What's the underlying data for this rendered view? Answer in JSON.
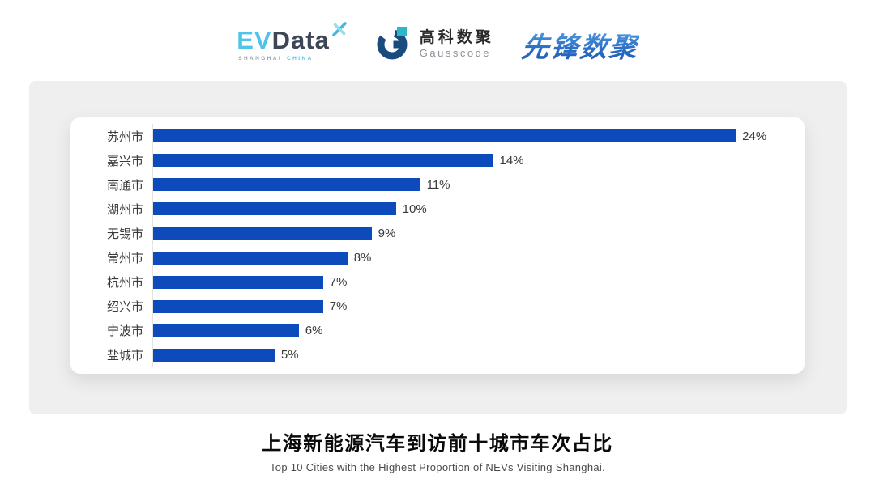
{
  "header": {
    "evdata": {
      "ev": "EV",
      "data": "Data",
      "sub_left": "SHANGHAI",
      "sub_right": "CHINA"
    },
    "gausscode": {
      "cn": "高科数聚",
      "en": "Gausscode"
    },
    "xianfeng": {
      "text": "先锋数聚"
    }
  },
  "chart_data": {
    "type": "bar",
    "orientation": "horizontal",
    "title": "",
    "categories": [
      "苏州市",
      "嘉兴市",
      "南通市",
      "湖州市",
      "无锡市",
      "常州市",
      "杭州市",
      "绍兴市",
      "宁波市",
      "盐城市"
    ],
    "values": [
      24,
      14,
      11,
      10,
      9,
      8,
      7,
      7,
      6,
      5
    ],
    "value_labels": [
      "24%",
      "14%",
      "11%",
      "10%",
      "9%",
      "8%",
      "7%",
      "7%",
      "6%",
      "5%"
    ],
    "xlim": [
      0,
      26
    ],
    "grid": false,
    "legend": false,
    "bar_color": "#0d4bbd"
  },
  "footer": {
    "title": "上海新能源汽车到访前十城市车次占比",
    "subtitle": "Top 10 Cities with the Highest Proportion of  NEVs Visiting Shanghai."
  },
  "colors": {
    "bar_blue": "#0d4bbd",
    "panel_gray": "#efefef",
    "evdata_blue": "#4fc3e8",
    "evdata_dark": "#3c4656",
    "gauss_navy": "#1a4b7e",
    "gauss_teal": "#2cb7c9",
    "xianfeng_blue": "#2e72c8"
  }
}
